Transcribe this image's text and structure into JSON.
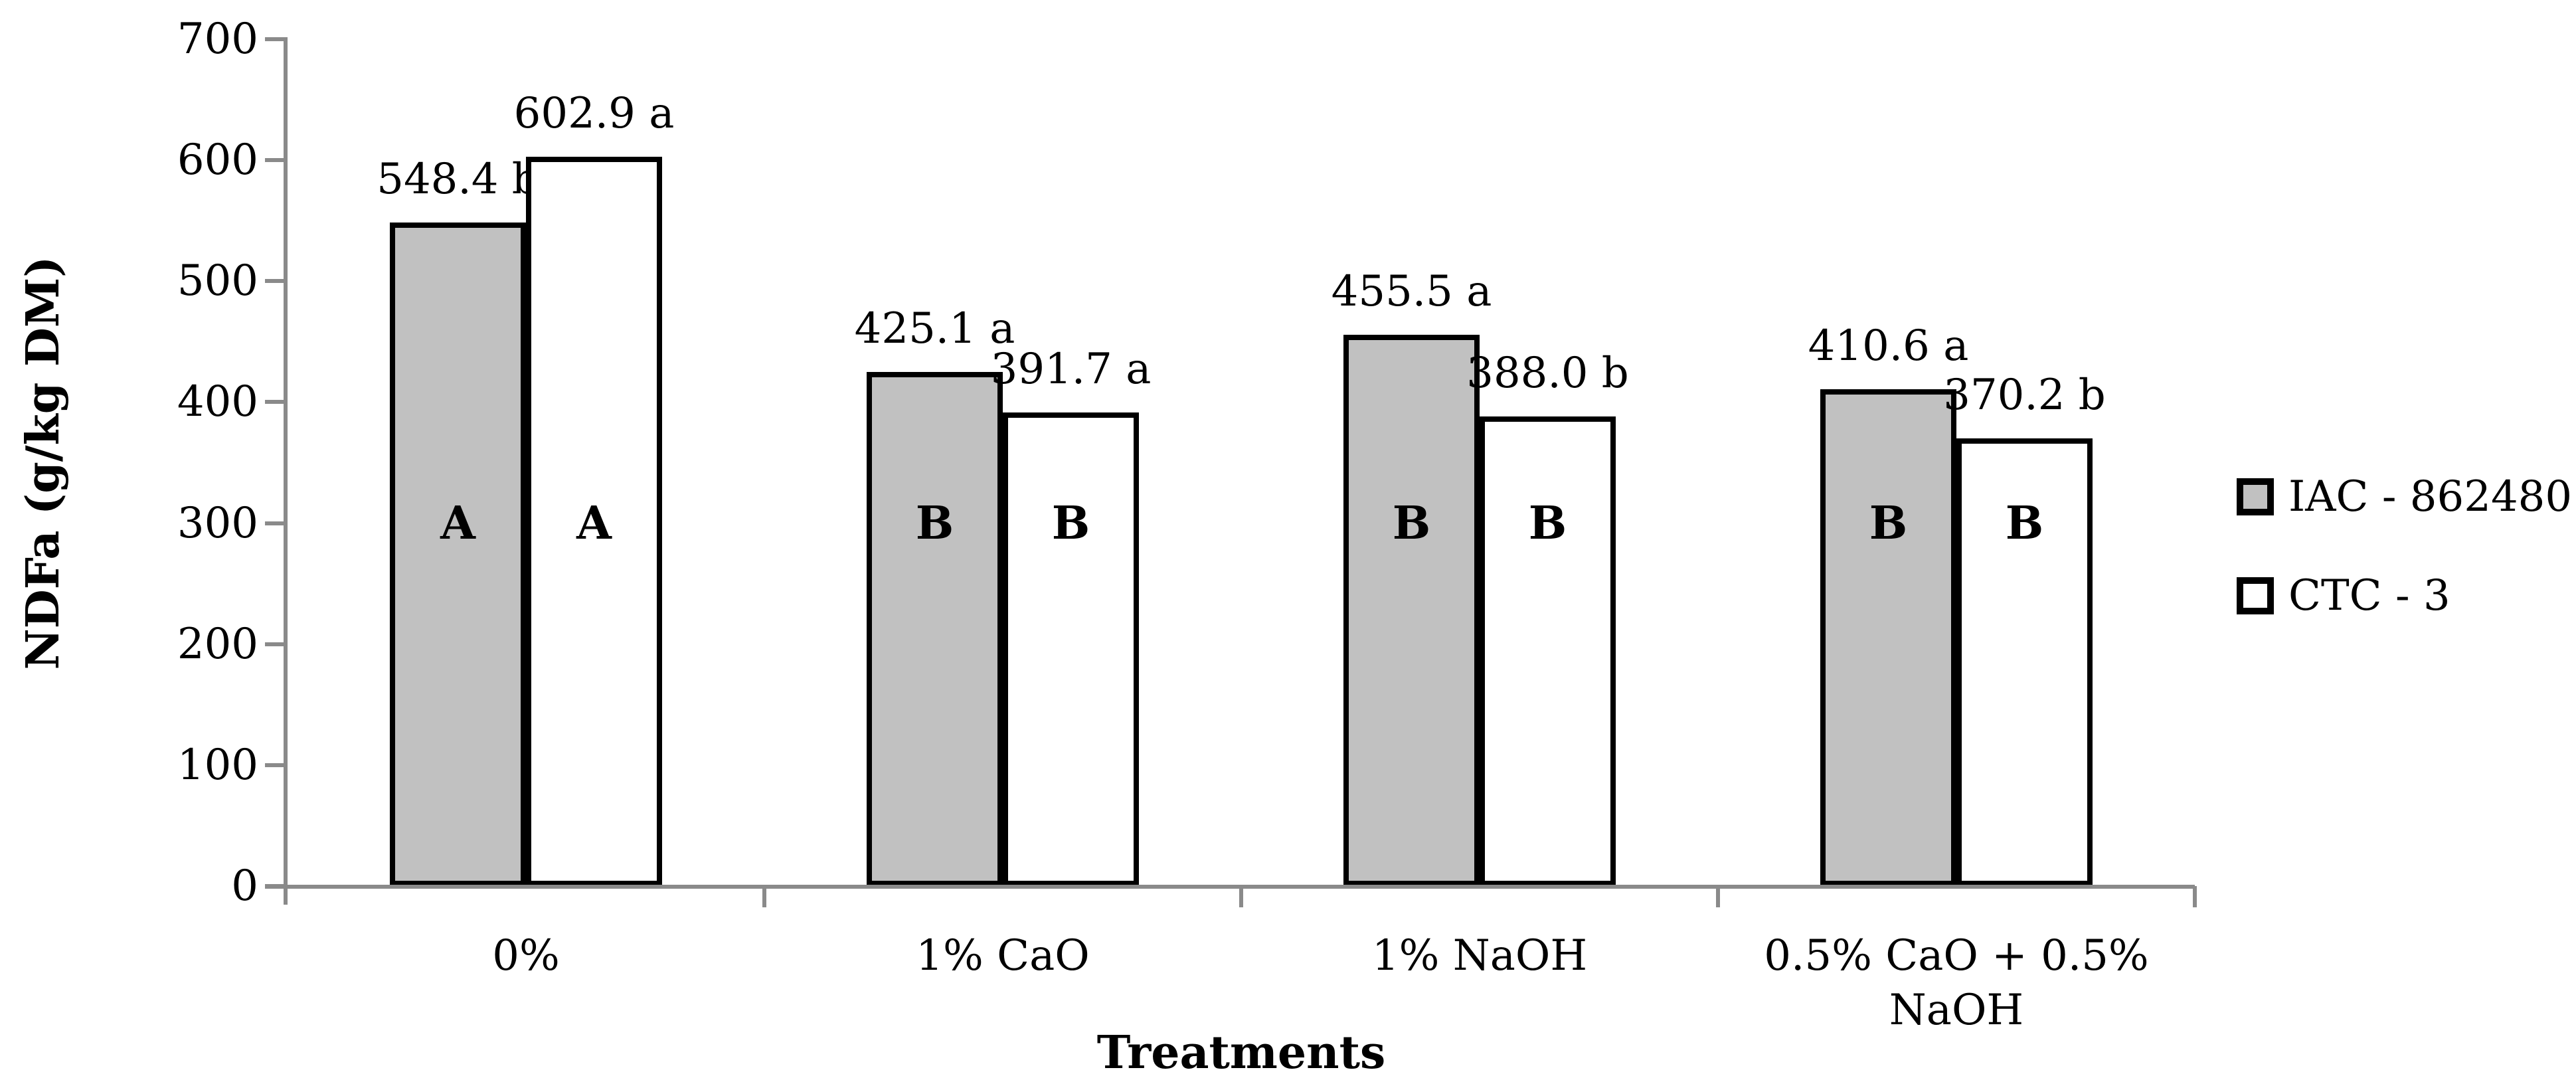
{
  "chart_data": {
    "type": "bar",
    "title": "",
    "xlabel": "Treatments",
    "ylabel": "NDFa (g/kg DM)",
    "ylim": [
      0,
      700
    ],
    "ytick_labels": [
      "0",
      "100",
      "200",
      "300",
      "400",
      "500",
      "600",
      "700"
    ],
    "grid": "off",
    "legend_position": "right",
    "categories": [
      {
        "lines": [
          "0%"
        ]
      },
      {
        "lines": [
          "1% CaO"
        ]
      },
      {
        "lines": [
          "1% NaOH"
        ]
      },
      {
        "lines": [
          "0.5% CaO + 0.5%",
          "NaOH"
        ]
      }
    ],
    "series": [
      {
        "name": "IAC - 862480",
        "fill": "#C1C1C1",
        "values": [
          548.4,
          425.1,
          455.5,
          410.6
        ],
        "value_labels": [
          "548.4 b",
          "425.1 a",
          "455.5 a",
          "410.6 a"
        ],
        "bar_letters": [
          "A",
          "B",
          "B",
          "B"
        ]
      },
      {
        "name": "CTC - 3",
        "fill": "#FFFFFF",
        "values": [
          602.9,
          391.7,
          388.0,
          370.2
        ],
        "value_labels": [
          "602.9 a",
          "391.7 a",
          "388.0 b",
          "370.2 b"
        ],
        "bar_letters": [
          "A",
          "B",
          "B",
          "B"
        ]
      }
    ],
    "colors": {
      "bar_border": "#000000",
      "axis": "#8A8A8A",
      "text": "#000000",
      "background": "#FFFFFF"
    }
  }
}
